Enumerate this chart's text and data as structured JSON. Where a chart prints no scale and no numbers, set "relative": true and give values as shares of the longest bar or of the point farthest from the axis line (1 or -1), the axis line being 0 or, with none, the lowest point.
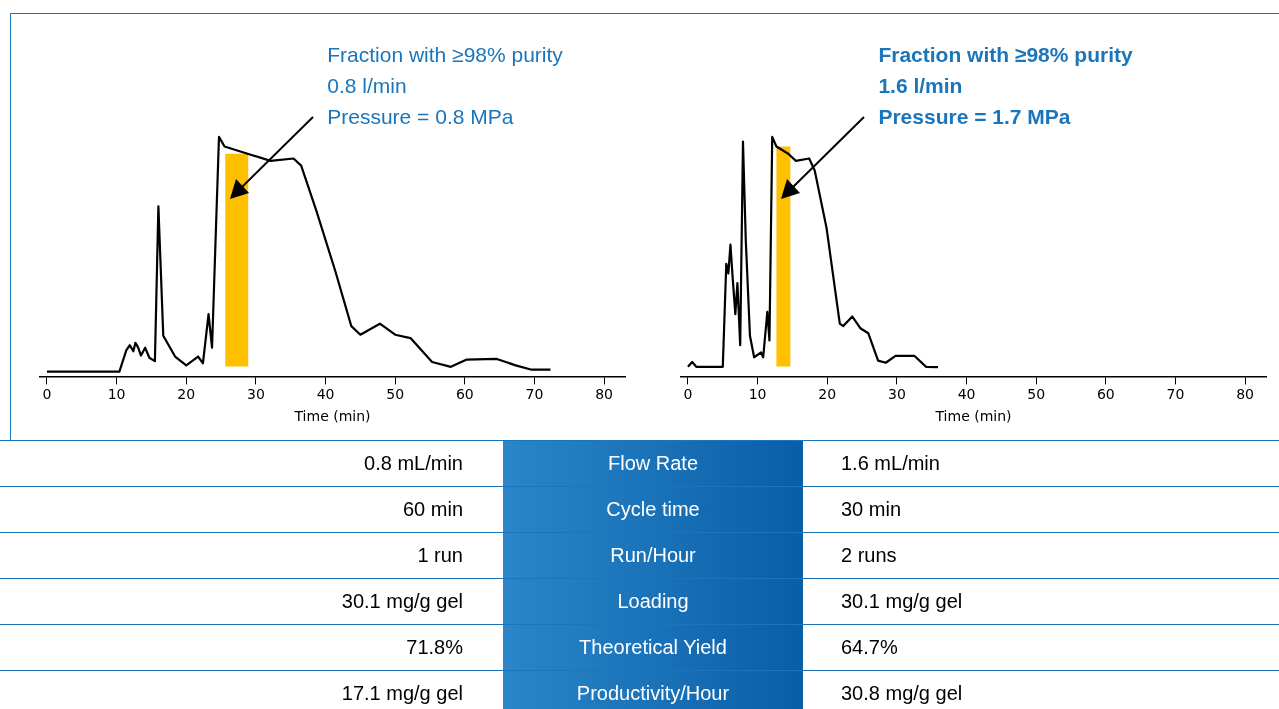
{
  "chart_data": [
    {
      "type": "line",
      "relative": true,
      "xlabel": "Time (min)",
      "xlim": [
        -1,
        83
      ],
      "xticks": [
        0,
        10,
        20,
        30,
        40,
        50,
        60,
        70,
        80
      ],
      "grid": false,
      "legend": false,
      "marker": "none",
      "line_style": "solid",
      "series": [
        {
          "color": "#000000",
          "x": [
            0,
            10.4,
            11.4,
            11.9,
            12.4,
            12.7,
            13.1,
            13.5,
            14.1,
            14.7,
            15.5,
            16.0,
            16.7,
            18.4,
            20.0,
            21.7,
            22.4,
            23.2,
            23.7,
            24.7,
            25.5,
            28.8,
            32.1,
            35.4,
            36.5,
            38.7,
            41.4,
            43.7,
            45.0,
            47.8,
            50.0,
            52.2,
            55.3,
            58.0,
            60.2,
            64.6,
            67.3,
            69.6,
            72.3
          ],
          "values": [
            0.02,
            0.02,
            0.11,
            0.13,
            0.105,
            0.14,
            0.12,
            0.087,
            0.12,
            0.078,
            0.064,
            0.71,
            0.17,
            0.083,
            0.046,
            0.083,
            0.055,
            0.26,
            0.12,
            1.0,
            0.96,
            0.93,
            0.9,
            0.91,
            0.88,
            0.69,
            0.44,
            0.21,
            0.174,
            0.22,
            0.174,
            0.16,
            0.06,
            0.04,
            0.07,
            0.073,
            0.046,
            0.028,
            0.028
          ]
        }
      ],
      "bands": [
        {
          "axis": "x",
          "from": 25.6,
          "to": 28.9,
          "color": "#ffc000"
        }
      ],
      "annotations": [
        "Fraction with ≥98% purity",
        "0.8 l/min",
        "Pressure = 0.8 MPa"
      ]
    },
    {
      "type": "line",
      "relative": true,
      "xlabel": "Time (min)",
      "xlim": [
        -1,
        83
      ],
      "xticks": [
        0,
        10,
        20,
        30,
        40,
        50,
        60,
        70,
        80
      ],
      "grid": false,
      "legend": false,
      "marker": "none",
      "line_style": "solid",
      "series": [
        {
          "color": "#000000",
          "x": [
            0,
            0.6,
            1.2,
            5.0,
            5.5,
            5.8,
            6.1,
            6.4,
            6.8,
            7.1,
            7.5,
            7.9,
            8.3,
            8.9,
            9.5,
            10.5,
            10.8,
            11.4,
            11.7,
            12.1,
            12.7,
            14.4,
            15.5,
            17.4,
            18.2,
            19.9,
            21.8,
            22.3,
            23.6,
            24.8,
            25.9,
            27.3,
            28.4,
            29.8,
            32.5,
            34.2,
            35.9
          ],
          "values": [
            0.04,
            0.06,
            0.04,
            0.04,
            0.47,
            0.43,
            0.55,
            0.42,
            0.26,
            0.39,
            0.13,
            0.98,
            0.57,
            0.17,
            0.08,
            0.1,
            0.08,
            0.27,
            0.15,
            1.0,
            0.96,
            0.93,
            0.9,
            0.91,
            0.86,
            0.62,
            0.22,
            0.21,
            0.25,
            0.2,
            0.18,
            0.066,
            0.057,
            0.086,
            0.086,
            0.04,
            0.039
          ]
        }
      ],
      "bands": [
        {
          "axis": "x",
          "from": 12.7,
          "to": 14.7,
          "color": "#ffc000"
        }
      ],
      "annotations": [
        "Fraction with ≥98% purity",
        "1.6 l/min",
        "Pressure = 1.7 MPa"
      ]
    },
    {
      "type": "other",
      "annotations": [
        "0.8 mL/min",
        "Flow Rate",
        "1.6 mL/min",
        "60 min",
        "Cycle time",
        "30 min",
        "1 run",
        "Run/Hour",
        "2 runs",
        "30.1 mg/g gel",
        "Loading",
        "30.1 mg/g gel",
        "71.8%",
        "Theoretical Yield",
        "64.7%",
        "17.1 mg/g gel",
        "Productivity/Hour",
        "30.8 mg/g gel"
      ]
    }
  ]
}
